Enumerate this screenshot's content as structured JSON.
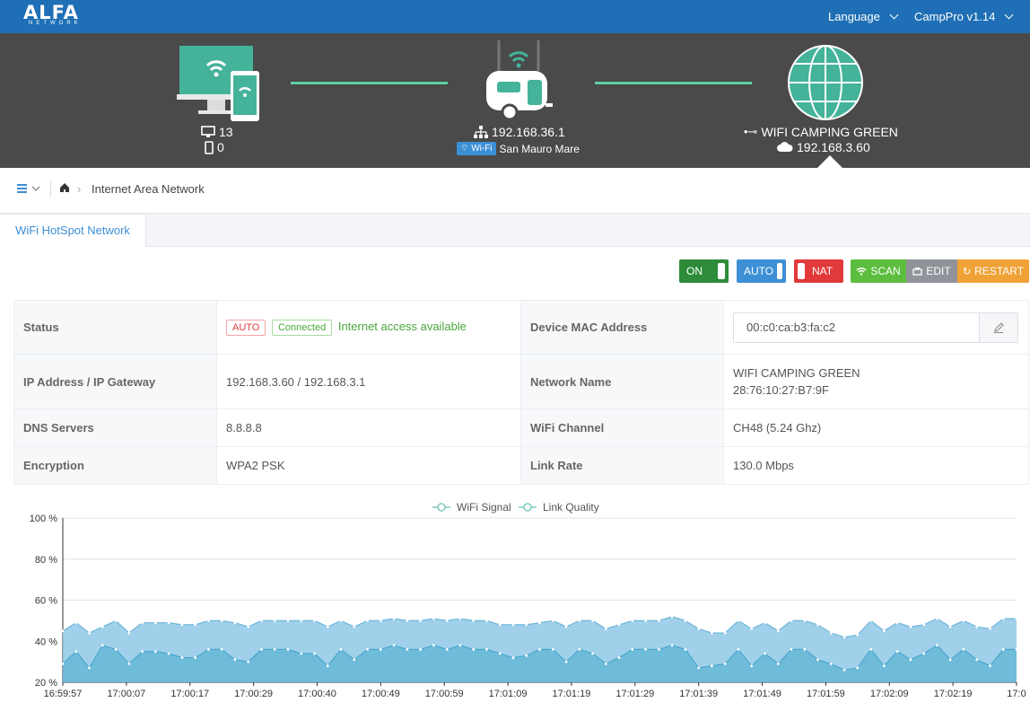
{
  "header": {
    "logo": "ALFA",
    "logo_sub": "NETWORK",
    "language_label": "Language",
    "version_label": "CampPro v1.14"
  },
  "topology": {
    "clients": {
      "desktop_count": "13",
      "mobile_count": "0"
    },
    "router": {
      "ip": "192.168.36.1",
      "wifi_badge": "Wi-Fi",
      "ssid": "San Mauro Mare"
    },
    "internet": {
      "network_name": "WIFI CAMPING GREEN",
      "ip": "192.168.3.60"
    },
    "colors": {
      "link": "#5fd0a0",
      "teal": "#44b39a"
    }
  },
  "breadcrumb": {
    "current": "Internet Area Network"
  },
  "tabs": [
    {
      "label": "WiFi HotSpot Network"
    }
  ],
  "toolbar": {
    "on_label": "ON",
    "auto_label": "AUTO",
    "nat_label": "NAT",
    "scan_label": "SCAN",
    "edit_label": "EDIT",
    "restart_label": "RESTART",
    "colors": {
      "on": "#2e8b3a",
      "auto": "#3d8fd6",
      "nat": "#e23a3a",
      "scan": "#5cbd3e",
      "edit": "#909399",
      "restart": "#f0a236"
    }
  },
  "info": {
    "status_label": "Status",
    "status_auto": "AUTO",
    "status_connected": "Connected",
    "status_text": "Internet access available",
    "mac_label": "Device MAC Address",
    "mac_value": "00:c0:ca:b3:fa:c2",
    "ip_label": "IP Address / IP Gateway",
    "ip_value": "192.168.3.60 / 192.168.3.1",
    "network_label": "Network Name",
    "network_value": "WIFI CAMPING GREEN",
    "bssid_value": "28:76:10:27:B7:9F",
    "dns_label": "DNS Servers",
    "dns_value": "8.8.8.8",
    "channel_label": "WiFi Channel",
    "channel_value": "CH48 (5.24 Ghz)",
    "encryption_label": "Encryption",
    "encryption_value": "WPA2 PSK",
    "linkrate_label": "Link Rate",
    "linkrate_value": "130.0 Mbps"
  },
  "chart_data": {
    "type": "area",
    "legend_position": "top-center",
    "ylim": [
      20,
      100
    ],
    "yticks": [
      "20 %",
      "40 %",
      "60 %",
      "80 %",
      "100 %"
    ],
    "xtick_labels": [
      "16:59:57",
      "17:00:07",
      "17:00:17",
      "17:00:29",
      "17:00:40",
      "17:00:49",
      "17:00:59",
      "17:01:09",
      "17:01:19",
      "17:01:29",
      "17:01:39",
      "17:01:49",
      "17:01:59",
      "17:02:09",
      "17:02:19",
      "17:0"
    ],
    "series": [
      {
        "name": "WiFi Signal",
        "color": "#8fc8e6",
        "values": [
          45,
          49,
          44,
          47,
          50,
          44,
          49,
          49,
          49,
          48,
          48,
          50,
          50,
          49,
          47,
          50,
          50,
          50,
          50,
          50,
          47,
          50,
          47,
          50,
          50,
          51,
          50,
          50,
          51,
          50,
          51,
          50,
          50,
          48,
          48,
          48,
          49,
          50,
          47,
          50,
          50,
          46,
          48,
          50,
          50,
          50,
          52,
          50,
          46,
          44,
          44,
          50,
          46,
          49,
          45,
          50,
          50,
          48,
          44,
          42,
          43,
          50,
          45,
          49,
          47,
          48,
          51,
          47,
          50,
          47,
          46,
          51,
          51
        ]
      },
      {
        "name": "Link Quality",
        "color": "#5fb4d4",
        "values": [
          29,
          35,
          27,
          38,
          36,
          29,
          35,
          35,
          34,
          32,
          32,
          36,
          36,
          31,
          30,
          36,
          36,
          36,
          34,
          34,
          28,
          36,
          31,
          36,
          36,
          38,
          36,
          36,
          38,
          36,
          38,
          36,
          36,
          34,
          32,
          33,
          36,
          36,
          30,
          36,
          34,
          29,
          32,
          36,
          36,
          36,
          38,
          36,
          27,
          28,
          29,
          36,
          28,
          34,
          29,
          36,
          36,
          31,
          29,
          26,
          27,
          36,
          28,
          35,
          31,
          34,
          38,
          31,
          36,
          31,
          28,
          36,
          36
        ]
      }
    ]
  }
}
